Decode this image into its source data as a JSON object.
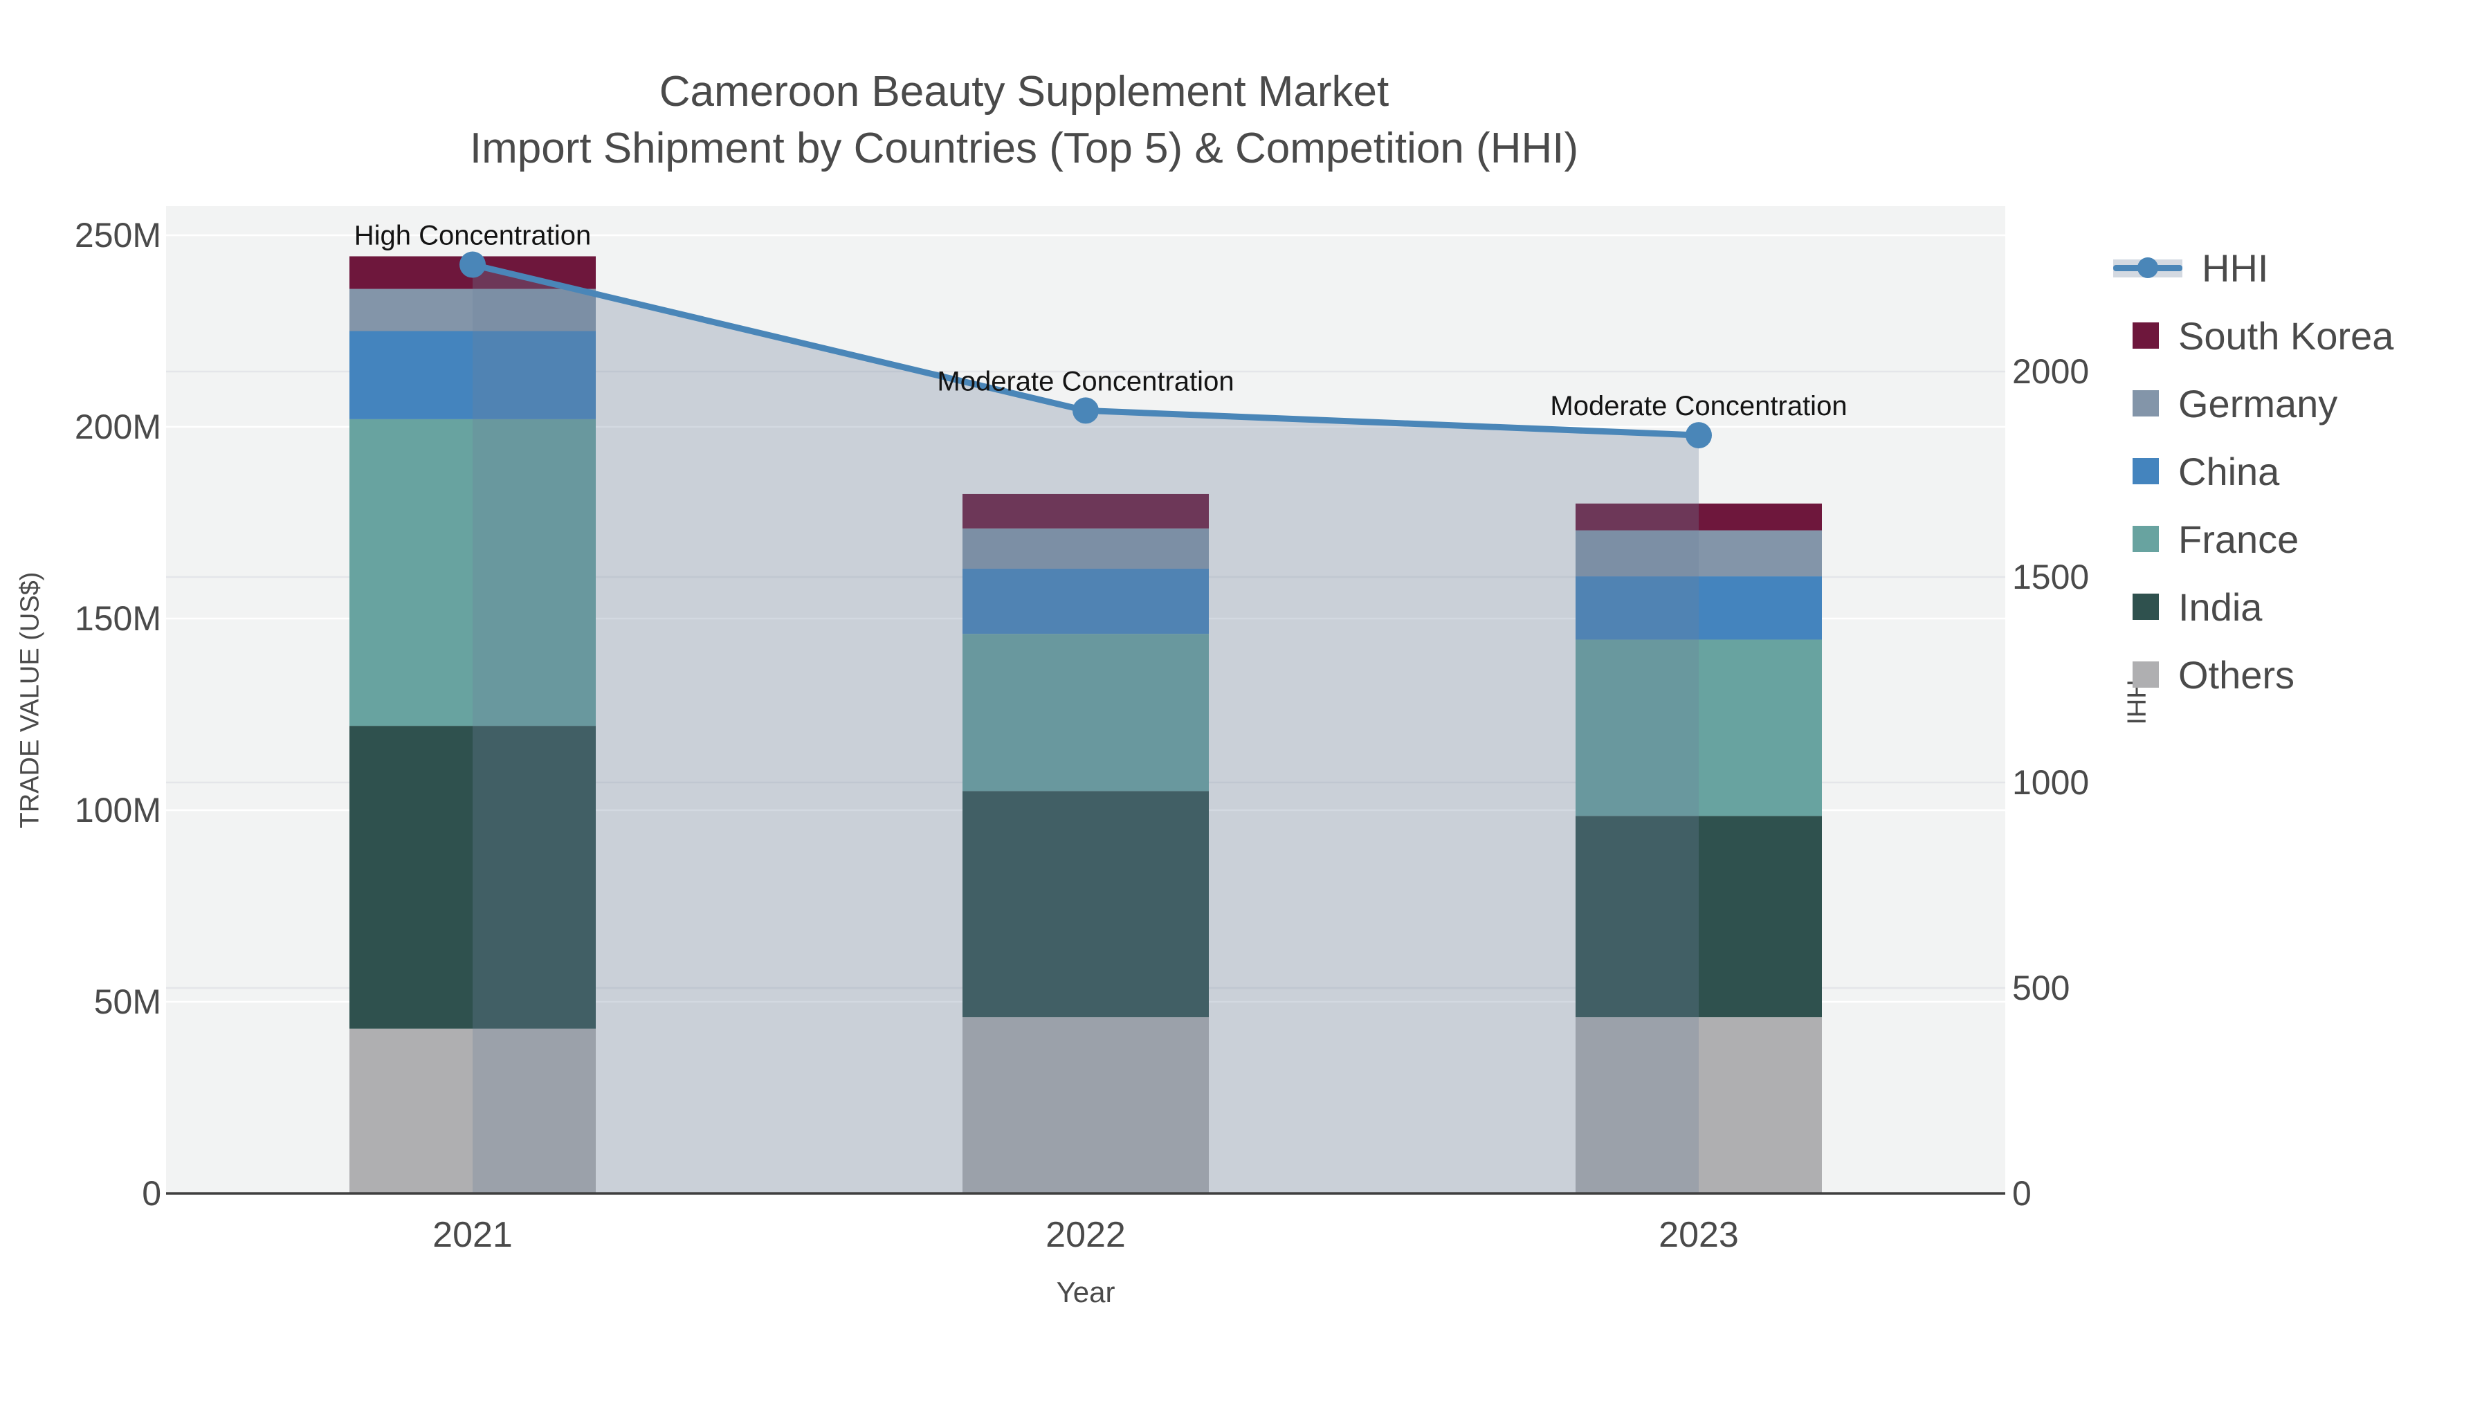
{
  "title": {
    "line1": "Cameroon Beauty Supplement Market",
    "line2": "Import Shipment by Countries (Top 5) & Competition (HHI)"
  },
  "axes": {
    "x": {
      "title": "Year",
      "categories": [
        "2021",
        "2022",
        "2023"
      ]
    },
    "y_left": {
      "title": "TRADE VALUE (US$)",
      "tick_labels": [
        "0",
        "50M",
        "100M",
        "150M",
        "200M",
        "250M"
      ],
      "tick_values_millions": [
        0,
        50,
        100,
        150,
        200,
        250
      ]
    },
    "y_right": {
      "title": "HHI",
      "tick_labels": [
        "0",
        "500",
        "1000",
        "1500",
        "2000"
      ],
      "tick_values": [
        0,
        500,
        1000,
        1500,
        2000
      ]
    }
  },
  "legend": {
    "items": [
      {
        "label": "HHI",
        "type": "line",
        "color": "#4a86b8"
      },
      {
        "label": "South Korea",
        "type": "swatch",
        "color": "#6e173c"
      },
      {
        "label": "Germany",
        "type": "swatch",
        "color": "#8395a9"
      },
      {
        "label": "China",
        "type": "swatch",
        "color": "#4484be"
      },
      {
        "label": "France",
        "type": "swatch",
        "color": "#68a3a0"
      },
      {
        "label": "India",
        "type": "swatch",
        "color": "#2f514e"
      },
      {
        "label": "Others",
        "type": "swatch",
        "color": "#afafb1"
      }
    ]
  },
  "chart_data": {
    "type": "bar",
    "subtype": "stacked bars (left axis, trade value in millions US$) + HHI line with shaded area (right axis)",
    "categories": [
      "2021",
      "2022",
      "2023"
    ],
    "value_unit": "millions US$",
    "series": [
      {
        "name": "Others",
        "color": "#afafb1",
        "values": [
          43,
          46,
          46
        ]
      },
      {
        "name": "India",
        "color": "#2f514e",
        "values": [
          79,
          59,
          52.5
        ]
      },
      {
        "name": "France",
        "color": "#68a3a0",
        "values": [
          80,
          41,
          46
        ]
      },
      {
        "name": "China",
        "color": "#4484be",
        "values": [
          23,
          17,
          16.5
        ]
      },
      {
        "name": "Germany",
        "color": "#8395a9",
        "values": [
          11,
          10.5,
          12
        ]
      },
      {
        "name": "South Korea",
        "color": "#6e173c",
        "values": [
          8.5,
          9,
          7
        ]
      }
    ],
    "bar_totals_millions": [
      244.5,
      182.5,
      180
    ],
    "hhi_line": {
      "name": "HHI",
      "color": "#4a86b8",
      "area_fill": "rgba(110,130,155,0.30)",
      "values": [
        2260,
        1905,
        1845
      ]
    },
    "annotations": [
      "High Concentration",
      "Moderate Concentration",
      "Moderate Concentration"
    ],
    "xlabel": "Year",
    "ylabel_left": "TRADE VALUE (US$)",
    "ylabel_right": "HHI",
    "ylim_left_millions": [
      0,
      257
    ],
    "ylim_right": [
      0,
      2400
    ],
    "grid": "on",
    "legend_position": "right",
    "plot_background": "#f2f3f3"
  }
}
